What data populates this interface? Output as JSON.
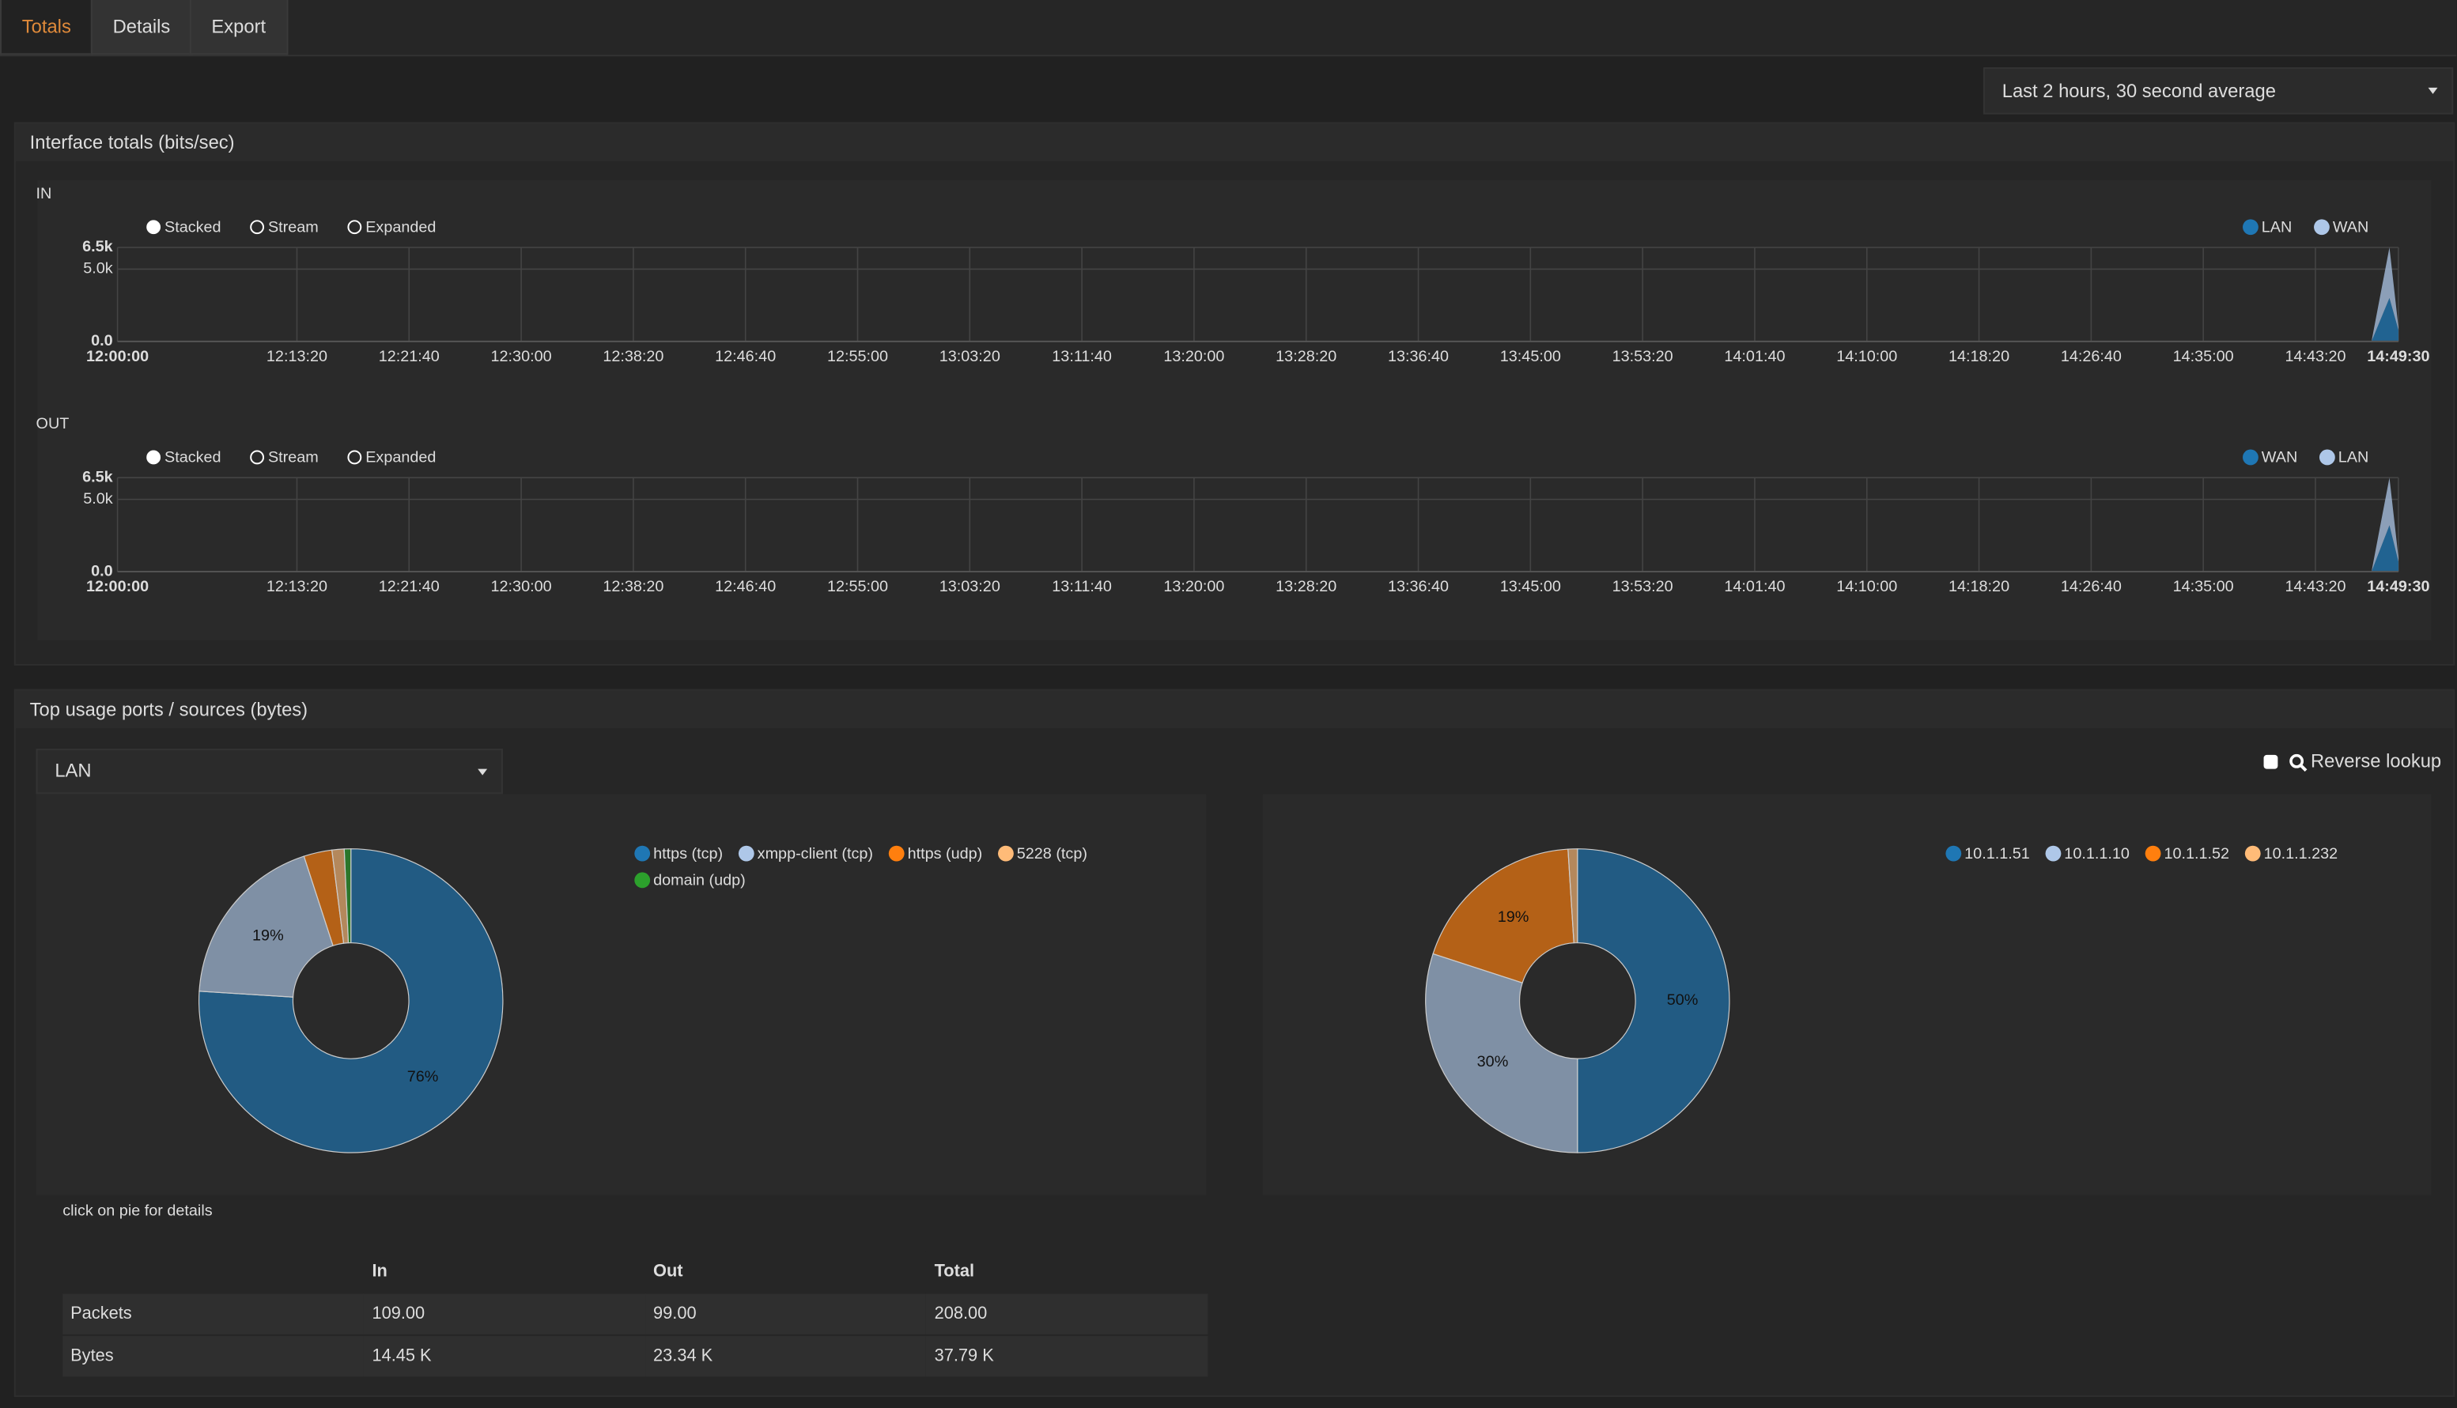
{
  "tabs": [
    "Totals",
    "Details",
    "Export"
  ],
  "range_select": "Last 2 hours, 30 second average",
  "interface_panel": {
    "title": "Interface totals (bits/sec)"
  },
  "chart_data": [
    {
      "type": "area",
      "label": "IN",
      "modes": [
        "Stacked",
        "Stream",
        "Expanded"
      ],
      "selected_mode": "Stacked",
      "stacked": true,
      "grid": true,
      "legend": "top-right",
      "x": [
        "12:00:00",
        "14:47:30",
        "14:48:50",
        "14:49:30"
      ],
      "series": [
        {
          "name": "LAN",
          "color": "#1f77b4",
          "values": [
            0,
            0,
            3000,
            800
          ]
        },
        {
          "name": "WAN",
          "color": "#aec7e8",
          "values": [
            0,
            0,
            3500,
            200
          ]
        }
      ],
      "xlim": [
        "12:00:00",
        "14:49:30"
      ],
      "xticks": [
        "12:00:00",
        "12:13:20",
        "12:21:40",
        "12:30:00",
        "12:38:20",
        "12:46:40",
        "12:55:00",
        "13:03:20",
        "13:11:40",
        "13:20:00",
        "13:28:20",
        "13:36:40",
        "13:45:00",
        "13:53:20",
        "14:01:40",
        "14:10:00",
        "14:18:20",
        "14:26:40",
        "14:35:00",
        "14:43:20",
        "14:49:30"
      ],
      "ylim": [
        0,
        6500
      ],
      "yticks": [
        {
          "value": 0,
          "label": "0.0"
        },
        {
          "value": 5000,
          "label": "5.0k"
        },
        {
          "value": 6500,
          "label": "6.5k"
        }
      ]
    },
    {
      "type": "area",
      "label": "OUT",
      "modes": [
        "Stacked",
        "Stream",
        "Expanded"
      ],
      "selected_mode": "Stacked",
      "stacked": true,
      "grid": true,
      "legend": "top-right",
      "x": [
        "12:00:00",
        "14:47:30",
        "14:48:50",
        "14:49:30"
      ],
      "series": [
        {
          "name": "WAN",
          "color": "#1f77b4",
          "values": [
            0,
            0,
            3200,
            700
          ]
        },
        {
          "name": "LAN",
          "color": "#aec7e8",
          "values": [
            0,
            0,
            3300,
            300
          ]
        }
      ],
      "xlim": [
        "12:00:00",
        "14:49:30"
      ],
      "xticks": [
        "12:00:00",
        "12:13:20",
        "12:21:40",
        "12:30:00",
        "12:38:20",
        "12:46:40",
        "12:55:00",
        "13:03:20",
        "13:11:40",
        "13:20:00",
        "13:28:20",
        "13:36:40",
        "13:45:00",
        "13:53:20",
        "14:01:40",
        "14:10:00",
        "14:18:20",
        "14:26:40",
        "14:35:00",
        "14:43:20",
        "14:49:30"
      ],
      "ylim": [
        0,
        6500
      ],
      "yticks": [
        {
          "value": 0,
          "label": "0.0"
        },
        {
          "value": 5000,
          "label": "5.0k"
        },
        {
          "value": 6500,
          "label": "6.5k"
        }
      ]
    },
    {
      "type": "pie",
      "donut": true,
      "categories": [
        "https (tcp)",
        "xmpp-client (tcp)",
        "https (udp)",
        "5228 (tcp)",
        "domain (udp)"
      ],
      "colors": [
        "#1f77b4",
        "#aec7e8",
        "#ff7f0e",
        "#ffbb78",
        "#2ca02c"
      ],
      "values": [
        76,
        19,
        3,
        1.3,
        0.7
      ],
      "value_labels": [
        "76%",
        "19%",
        null,
        null,
        null
      ]
    },
    {
      "type": "pie",
      "donut": true,
      "categories": [
        "10.1.1.51",
        "10.1.1.10",
        "10.1.1.52",
        "10.1.1.232"
      ],
      "colors": [
        "#1f77b4",
        "#aec7e8",
        "#ff7f0e",
        "#ffbb78"
      ],
      "values": [
        50,
        30,
        19,
        1
      ],
      "value_labels": [
        "50%",
        "30%",
        "19%",
        null
      ]
    }
  ],
  "usage_panel": {
    "title": "Top usage ports / sources (bytes)",
    "interface_select": "LAN",
    "reverse_lookup": "Reverse lookup",
    "hint": "click on pie for details"
  },
  "table": {
    "header": [
      "In",
      "Out",
      "Total"
    ],
    "rows": [
      [
        "Packets",
        "109.00",
        "99.00",
        "208.00"
      ],
      [
        "Bytes",
        "14.45 K",
        "23.34 K",
        "37.79 K"
      ]
    ]
  }
}
